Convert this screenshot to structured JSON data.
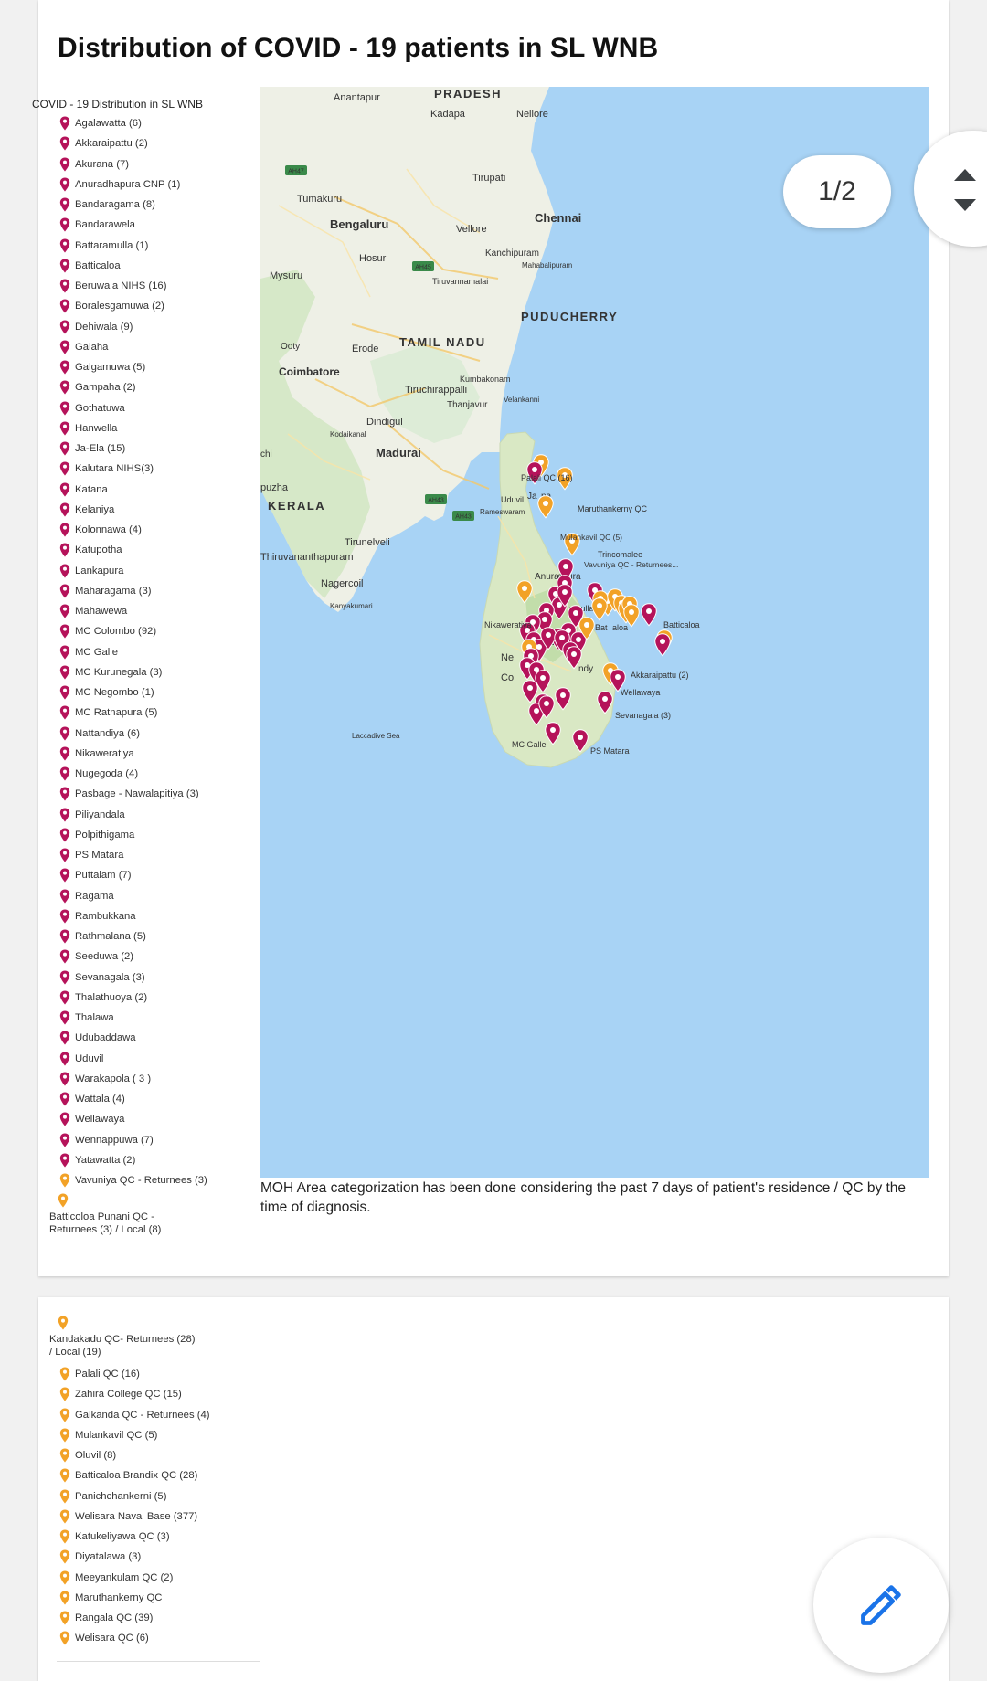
{
  "title": "Distribution of COVID - 19 patients in SL WNB",
  "legend_title": "COVID - 19 Distribution in SL WNB",
  "colors": {
    "moh_pin": "#b5135a",
    "qc_pin": "#f2a227",
    "sea": "#a8d3f5",
    "land": "#eef0e6",
    "edit_icon": "#1a73e8"
  },
  "legend_moh": [
    "Agalawatta (6)",
    "Akkaraipattu (2)",
    "Akurana (7)",
    "Anuradhapura CNP (1)",
    "Bandaragama (8)",
    "Bandarawela",
    "Battaramulla (1)",
    "Batticaloa",
    "Beruwala NIHS (16)",
    "Boralesgamuwa (2)",
    "Dehiwala (9)",
    "Galaha",
    "Galgamuwa (5)",
    "Gampaha (2)",
    "Gothatuwa",
    "Hanwella",
    "Ja-Ela (15)",
    "Kalutara NIHS(3)",
    "Katana",
    "Kelaniya",
    "Kolonnawa (4)",
    "Katupotha",
    "Lankapura",
    "Maharagama (3)",
    "Mahawewa",
    "MC Colombo (92)",
    "MC Galle",
    "MC Kurunegala (3)",
    "MC Negombo (1)",
    "MC Ratnapura (5)",
    "Nattandiya (6)",
    "Nikaweratiya",
    "Nugegoda (4)",
    "Pasbage - Nawalapitiya (3)",
    "Piliyandala",
    "Polpithigama",
    "PS Matara",
    "Puttalam (7)",
    "Ragama",
    "Rambukkana",
    "Rathmalana (5)",
    "Seeduwa (2)",
    "Sevanagala (3)",
    "Thalathuoya (2)",
    "Thalawa",
    "Udubaddawa",
    "Uduvil",
    "Warakapola ( 3 )",
    "Wattala (4)",
    "Wellawaya",
    "Wennappuwa (7)",
    "Yatawatta (2)"
  ],
  "legend_qc_page1": [
    {
      "label": "Vavuniya QC - Returnees (3)",
      "multiline": false
    },
    {
      "label": "Batticoloa Punani QC - Returnees (3) / Local (8)",
      "multiline": true
    }
  ],
  "legend_qc_page2": [
    {
      "label": "Kandakadu QC- Returnees (28) / Local (19)",
      "multiline": true
    },
    {
      "label": "Palali QC (16)",
      "multiline": false
    },
    {
      "label": "Zahira College QC (15)",
      "multiline": false
    },
    {
      "label": "Galkanda QC - Returnees (4)",
      "multiline": false
    },
    {
      "label": "Mulankavil QC (5)",
      "multiline": false
    },
    {
      "label": "Oluvil (8)",
      "multiline": false
    },
    {
      "label": "Batticaloa Brandix QC (28)",
      "multiline": false
    },
    {
      "label": "Panichchankerni (5)",
      "multiline": false
    },
    {
      "label": "Welisara Naval Base (377)",
      "multiline": false
    },
    {
      "label": "Katukeliyawa QC (3)",
      "multiline": false
    },
    {
      "label": "Diyatalawa (3)",
      "multiline": false
    },
    {
      "label": "Meeyankulam QC (2)",
      "multiline": false
    },
    {
      "label": "Maruthankerny QC",
      "multiline": false
    },
    {
      "label": "Rangala QC (39)",
      "multiline": false
    },
    {
      "label": "Welisara QC (6)",
      "multiline": false
    }
  ],
  "map": {
    "region_labels": [
      "PRADESH",
      "TAMIL NADU",
      "KERALA",
      "PUDUCHERRY"
    ],
    "city_labels": [
      "Anantapur",
      "Kadapa",
      "Nellore",
      "Tirupati",
      "Tumakuru",
      "Bengaluru",
      "Chennai",
      "Vellore",
      "Hosur",
      "Kanchipuram",
      "Mahabalipuram",
      "Mysuru",
      "Tiruvannamalai",
      "Ooty",
      "Erode",
      "Coimbatore",
      "Kumbakonam",
      "Tiruchirappalli",
      "Thanjavur",
      "Velankanni",
      "Dindigul",
      "Kodaikanal",
      "Madurai",
      "chi",
      "puzha",
      "Rameswaram",
      "Tirunelveli",
      "Thiruvananthapuram",
      "Nagercoil",
      "Kanyakumari",
      "Laccadive Sea",
      "Trincomalee"
    ],
    "road_labels": [
      "AH47",
      "AH45",
      "AH43",
      "AH43"
    ],
    "sl_partial_labels": [
      "Anura",
      "apura",
      "nka",
      "Ne",
      "Co",
      "ndy",
      "Bat",
      "aloa",
      "Ja",
      "na",
      "mbulla"
    ],
    "pin_labels": [
      "Palali QC (16)",
      "Uduvil",
      "Maruthankerny QC",
      "Mulankavil QC (5)",
      "Vavuniya QC - Returnees...",
      "Nikaweratiya",
      "Batticaloa",
      "Akkaraipattu (2)",
      "Wellawaya",
      "Sevanagala (3)",
      "MC Galle",
      "PS Matara"
    ]
  },
  "caption": "MOH Area categorization has been done considering the past 7 days of patient's residence / QC by the time of diagnosis.",
  "pager": "1/2"
}
